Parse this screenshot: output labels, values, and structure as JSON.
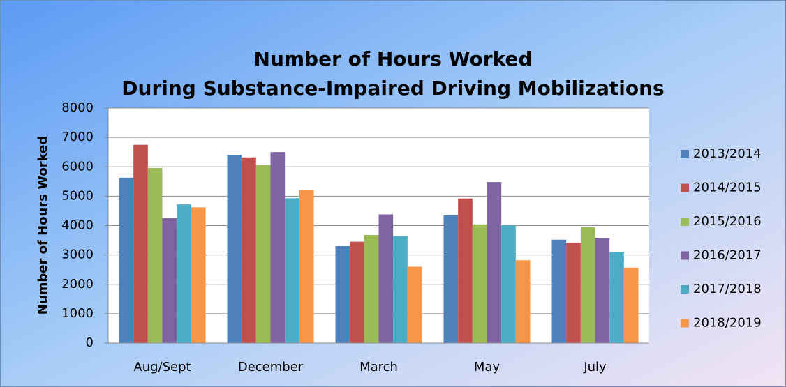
{
  "chart_data": {
    "type": "bar",
    "title": [
      "Number of Hours Worked",
      "During Substance-Impaired Driving Mobilizations"
    ],
    "y_label": "Number of Hours Worked",
    "categories": [
      "Aug/Sept",
      "December",
      "March",
      "May",
      "July"
    ],
    "series": [
      {
        "name": "2013/2014",
        "color": "#4f81bd",
        "values": [
          5630,
          6400,
          3300,
          4350,
          3520
        ]
      },
      {
        "name": "2014/2015",
        "color": "#c0504d",
        "values": [
          6750,
          6320,
          3450,
          4920,
          3420
        ]
      },
      {
        "name": "2015/2016",
        "color": "#9bbb59",
        "values": [
          5960,
          6060,
          3680,
          4040,
          3940
        ]
      },
      {
        "name": "2016/2017",
        "color": "#8064a2",
        "values": [
          4250,
          6500,
          4380,
          5480,
          3580
        ]
      },
      {
        "name": "2017/2018",
        "color": "#4bacc6",
        "values": [
          4720,
          4930,
          3640,
          4010,
          3100
        ]
      },
      {
        "name": "2018/2019",
        "color": "#f79646",
        "values": [
          4620,
          5220,
          2600,
          2820,
          2570
        ]
      }
    ],
    "ylim": [
      0,
      8000
    ],
    "yticks": [
      0,
      1000,
      2000,
      3000,
      4000,
      5000,
      6000,
      7000,
      8000
    ],
    "grid": true,
    "legend": "right"
  }
}
